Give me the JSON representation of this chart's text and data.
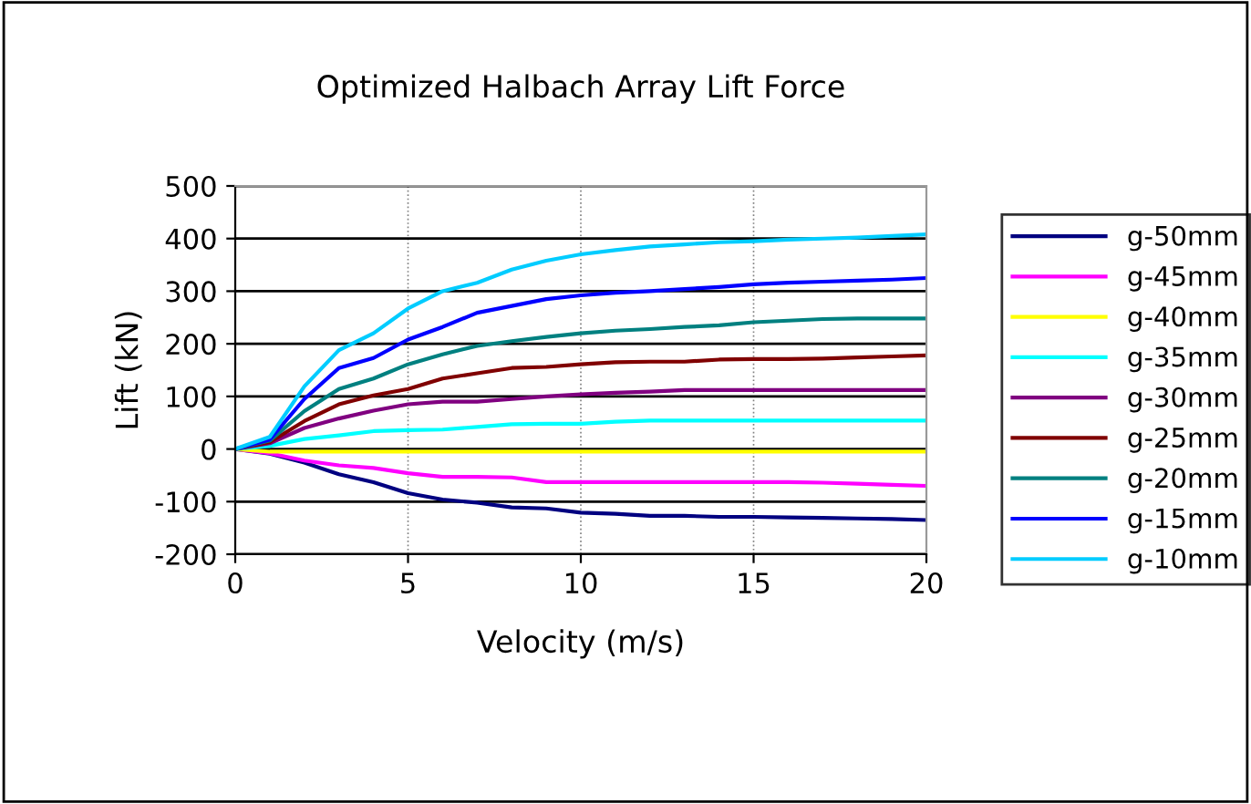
{
  "chart_data": {
    "type": "line",
    "title": "Optimized Halbach Array Lift Force",
    "xlabel": "Velocity (m/s)",
    "ylabel": "Lift (kN)",
    "x": [
      0,
      1,
      2,
      3,
      4,
      5,
      6,
      7,
      8,
      9,
      10,
      11,
      12,
      13,
      14,
      15,
      16,
      17,
      18,
      19,
      20
    ],
    "xlim": [
      0,
      20
    ],
    "xticks": [
      0,
      5,
      10,
      15,
      20
    ],
    "ylim": [
      -200,
      500
    ],
    "yticks": [
      -200,
      -100,
      0,
      100,
      200,
      300,
      400,
      500
    ],
    "grid": true,
    "legend": "right",
    "marker": "none",
    "line_style": "solid",
    "series": [
      {
        "name": "g-50mm",
        "color": "#000080",
        "values": [
          0,
          -9,
          -26,
          -48,
          -63,
          -84,
          -96,
          -102,
          -111,
          -113,
          -121,
          -123,
          -127,
          -127,
          -129,
          -129,
          -130,
          -131,
          -132,
          -133,
          -135
        ]
      },
      {
        "name": "g-45mm",
        "color": "#ff00ff",
        "values": [
          0,
          -8,
          -22,
          -31,
          -36,
          -46,
          -53,
          -53,
          -54,
          -63,
          -63,
          -63,
          -63,
          -63,
          -63,
          -63,
          -63,
          -64,
          -66,
          -68,
          -70
        ]
      },
      {
        "name": "g-40mm",
        "color": "#ffff00",
        "values": [
          0,
          -5,
          -5,
          -5,
          -5,
          -5,
          -5,
          -5,
          -5,
          -5,
          -5,
          -5,
          -5,
          -5,
          -5,
          -5,
          -5,
          -5,
          -5,
          -5,
          -5
        ]
      },
      {
        "name": "g-35mm",
        "color": "#00ffff",
        "values": [
          0,
          6,
          19,
          26,
          34,
          36,
          37,
          42,
          47,
          48,
          48,
          52,
          54,
          54,
          54,
          54,
          54,
          54,
          54,
          54,
          54
        ]
      },
      {
        "name": "g-30mm",
        "color": "#800080",
        "values": [
          0,
          11,
          40,
          58,
          73,
          85,
          90,
          90,
          95,
          100,
          104,
          107,
          109,
          112,
          112,
          112,
          112,
          112,
          112,
          112,
          112
        ]
      },
      {
        "name": "g-25mm",
        "color": "#800000",
        "values": [
          0,
          13,
          53,
          85,
          102,
          114,
          134,
          144,
          154,
          156,
          161,
          165,
          166,
          166,
          170,
          171,
          171,
          172,
          174,
          176,
          178
        ]
      },
      {
        "name": "g-20mm",
        "color": "#008080",
        "values": [
          0,
          16,
          72,
          114,
          134,
          161,
          180,
          196,
          205,
          213,
          220,
          225,
          228,
          232,
          235,
          241,
          244,
          247,
          248,
          248,
          248
        ]
      },
      {
        "name": "g-15mm",
        "color": "#0000ff",
        "values": [
          0,
          18,
          95,
          154,
          173,
          208,
          232,
          259,
          272,
          285,
          292,
          297,
          300,
          304,
          308,
          313,
          316,
          318,
          320,
          322,
          325
        ]
      },
      {
        "name": "g-10mm",
        "color": "#00ccff",
        "values": [
          0,
          23,
          119,
          188,
          220,
          267,
          300,
          316,
          341,
          358,
          370,
          378,
          385,
          389,
          393,
          395,
          398,
          400,
          402,
          405,
          408
        ]
      }
    ]
  }
}
